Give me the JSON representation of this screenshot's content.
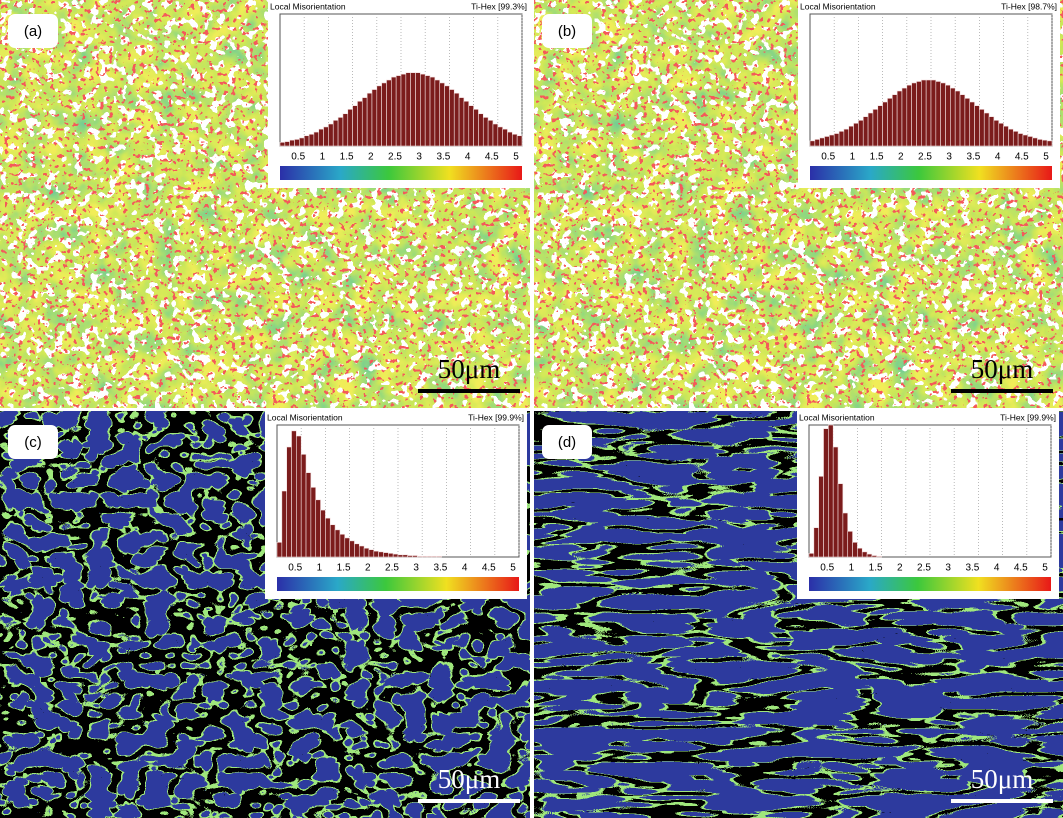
{
  "chart_data": [
    {
      "type": "histogram",
      "panel_label": "(a)",
      "title": "Local Misorientation",
      "phase_label": "Ti-Hex [99.3%]",
      "scale_bar_label": "50μm",
      "bins": [
        0,
        0.1,
        0.2,
        0.3,
        0.4,
        0.5,
        0.6,
        0.7,
        0.8,
        0.9,
        1,
        1.1,
        1.2,
        1.3,
        1.4,
        1.5,
        1.6,
        1.7,
        1.8,
        1.9,
        2,
        2.1,
        2.2,
        2.3,
        2.4,
        2.5,
        2.6,
        2.7,
        2.8,
        2.9,
        3,
        3.1,
        3.2,
        3.3,
        3.4,
        3.5,
        3.6,
        3.7,
        3.8,
        3.9,
        4,
        4.1,
        4.2,
        4.3,
        4.4,
        4.5,
        4.6,
        4.7,
        4.8,
        4.9,
        5
      ],
      "values": [
        5,
        6,
        8,
        9,
        11,
        14,
        16,
        19,
        23,
        26,
        30,
        35,
        39,
        44,
        50,
        55,
        61,
        66,
        72,
        77,
        82,
        86,
        90,
        94,
        96,
        98,
        100,
        100,
        100,
        98,
        96,
        94,
        90,
        86,
        82,
        77,
        72,
        66,
        61,
        55,
        50,
        44,
        39,
        35,
        30,
        26,
        23,
        19,
        16,
        14
      ],
      "color": "#7b1c1c",
      "xlim": [
        0,
        5
      ],
      "ylim": [
        0,
        180
      ],
      "xticks": [
        0.5,
        1,
        1.5,
        2,
        2.5,
        3,
        3.5,
        4,
        4.5,
        5
      ],
      "grid": true
    },
    {
      "type": "histogram",
      "panel_label": "(b)",
      "title": "Local Misorientation",
      "phase_label": "Ti-Hex [98.7%]",
      "scale_bar_label": "50μm",
      "bins": [
        0,
        0.1,
        0.2,
        0.3,
        0.4,
        0.5,
        0.6,
        0.7,
        0.8,
        0.9,
        1,
        1.1,
        1.2,
        1.3,
        1.4,
        1.5,
        1.6,
        1.7,
        1.8,
        1.9,
        2,
        2.1,
        2.2,
        2.3,
        2.4,
        2.5,
        2.6,
        2.7,
        2.8,
        2.9,
        3,
        3.1,
        3.2,
        3.3,
        3.4,
        3.5,
        3.6,
        3.7,
        3.8,
        3.9,
        4,
        4.1,
        4.2,
        4.3,
        4.4,
        4.5,
        4.6,
        4.7,
        4.8,
        4.9,
        5
      ],
      "values": [
        7,
        9,
        11,
        13,
        15,
        17,
        20,
        23,
        27,
        31,
        35,
        40,
        45,
        50,
        55,
        60,
        65,
        70,
        75,
        79,
        83,
        86,
        88,
        90,
        90,
        90,
        88,
        86,
        83,
        79,
        75,
        70,
        65,
        60,
        55,
        50,
        45,
        40,
        35,
        31,
        27,
        23,
        20,
        17,
        15,
        13,
        11,
        9,
        8,
        7
      ],
      "color": "#7b1c1c",
      "xlim": [
        0,
        5
      ],
      "ylim": [
        0,
        180
      ],
      "xticks": [
        0.5,
        1,
        1.5,
        2,
        2.5,
        3,
        3.5,
        4,
        4.5,
        5
      ],
      "grid": true
    },
    {
      "type": "histogram",
      "panel_label": "(c)",
      "title": "Local Misorientation",
      "phase_label": "Ti-Hex [99.9%]",
      "scale_bar_label": "50μm",
      "bins": [
        0,
        0.1,
        0.2,
        0.3,
        0.4,
        0.5,
        0.6,
        0.7,
        0.8,
        0.9,
        1,
        1.1,
        1.2,
        1.3,
        1.4,
        1.5,
        1.6,
        1.7,
        1.8,
        1.9,
        2,
        2.1,
        2.2,
        2.3,
        2.4,
        2.5,
        2.6,
        2.7,
        2.8,
        2.9,
        3,
        3.1,
        3.2,
        3.3,
        3.4,
        3.5,
        3.6,
        3.7,
        3.8,
        3.9,
        4,
        4.1,
        4.2,
        4.3,
        4.4,
        4.5,
        4.6,
        4.7,
        4.8,
        4.9,
        5
      ],
      "values": [
        20,
        90,
        150,
        172,
        165,
        140,
        115,
        95,
        78,
        64,
        53,
        44,
        37,
        31,
        26,
        22,
        18,
        15,
        12,
        10,
        8,
        7,
        6,
        5,
        4,
        3,
        3,
        2,
        2,
        1,
        1,
        1,
        1,
        1,
        0,
        0,
        0,
        0,
        0,
        0,
        0,
        0,
        0,
        0,
        0,
        0,
        0,
        0,
        0,
        0
      ],
      "color": "#7b1c1c",
      "xlim": [
        0,
        5
      ],
      "ylim": [
        0,
        180
      ],
      "xticks": [
        0.5,
        1,
        1.5,
        2,
        2.5,
        3,
        3.5,
        4,
        4.5,
        5
      ],
      "grid": true
    },
    {
      "type": "histogram",
      "panel_label": "(d)",
      "title": "Local Misorientation",
      "phase_label": "Ti-Hex [99.9%]",
      "scale_bar_label": "50μm",
      "bins": [
        0,
        0.1,
        0.2,
        0.3,
        0.4,
        0.5,
        0.6,
        0.7,
        0.8,
        0.9,
        1,
        1.1,
        1.2,
        1.3,
        1.4,
        1.5,
        1.6,
        1.7,
        1.8,
        1.9,
        2,
        2.1,
        2.2,
        2.3,
        2.4,
        2.5,
        2.6,
        2.7,
        2.8,
        2.9,
        3,
        3.1,
        3.2,
        3.3,
        3.4,
        3.5,
        3.6,
        3.7,
        3.8,
        3.9,
        4,
        4.1,
        4.2,
        4.3,
        4.4,
        4.5,
        4.6,
        4.7,
        4.8,
        4.9,
        5
      ],
      "values": [
        5,
        40,
        110,
        175,
        180,
        150,
        100,
        60,
        35,
        20,
        12,
        7,
        4,
        2,
        1,
        0,
        0,
        0,
        0,
        0,
        0,
        0,
        0,
        0,
        0,
        0,
        0,
        0,
        0,
        0,
        0,
        0,
        0,
        0,
        0,
        0,
        0,
        0,
        0,
        0,
        0,
        0,
        0,
        0,
        0,
        0,
        0,
        0,
        0,
        0
      ],
      "color": "#7b1c1c",
      "xlim": [
        0,
        5
      ],
      "ylim": [
        0,
        180
      ],
      "xticks": [
        0.5,
        1,
        1.5,
        2,
        2.5,
        3,
        3.5,
        4,
        4.5,
        5
      ],
      "grid": true
    }
  ]
}
